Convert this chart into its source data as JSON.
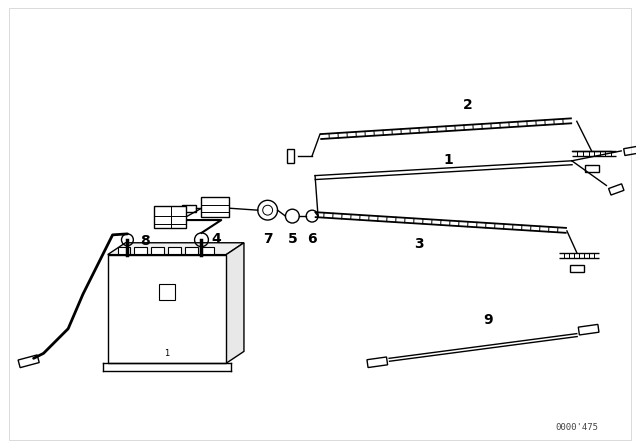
{
  "bg_color": "#ffffff",
  "line_color": "#000000",
  "fig_width": 6.4,
  "fig_height": 4.48,
  "dpi": 100,
  "watermark": "0000'475",
  "border_color": "#cccccc"
}
